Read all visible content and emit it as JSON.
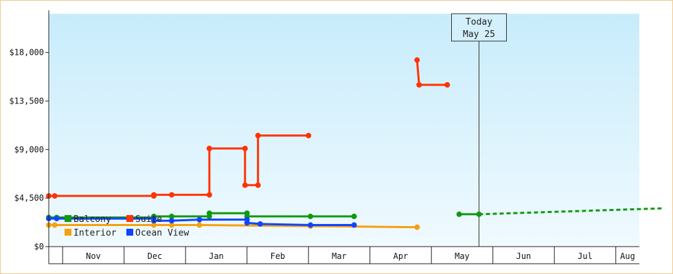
{
  "chart_data": {
    "type": "line",
    "title": "",
    "xlabel": "",
    "ylabel": "",
    "x_axis": {
      "type": "date",
      "range": [
        "2013-10-25",
        "2014-08-25"
      ],
      "tick_labels": [
        "Nov",
        "Dec",
        "Jan",
        "Feb",
        "Mar",
        "Apr",
        "May",
        "Jun",
        "Jul",
        "Aug"
      ]
    },
    "y_axis": {
      "range": [
        0,
        21600
      ],
      "ticks": [
        0,
        4500,
        9000,
        13500,
        18000
      ],
      "tick_labels": [
        "$0",
        "$4,500",
        "$9,000",
        "$13,500",
        "$18,000"
      ]
    },
    "grid": false,
    "legend_placement": "bottom-left",
    "today_marker": {
      "date": "2014-05-25",
      "line1": "Today",
      "line2": "May 25"
    },
    "series": [
      {
        "name": "Balcony",
        "color": "#119911",
        "segments": [
          [
            [
              "2013-10-25",
              2700
            ],
            [
              "2013-10-29",
              2700
            ],
            [
              "2013-12-16",
              2700
            ],
            [
              "2013-12-16",
              2800
            ],
            [
              "2013-12-25",
              2800
            ],
            [
              "2014-01-13",
              2800
            ],
            [
              "2014-01-13",
              3100
            ],
            [
              "2014-02-01",
              3100
            ],
            [
              "2014-02-01",
              2800
            ],
            [
              "2014-03-02",
              2800
            ],
            [
              "2014-03-24",
              2800
            ]
          ],
          [
            [
              "2014-05-15",
              3000
            ],
            [
              "2014-05-25",
              3000
            ]
          ]
        ],
        "projection": [
          [
            "2014-05-25",
            3000
          ],
          [
            "2014-08-25",
            3550
          ]
        ]
      },
      {
        "name": "Suite",
        "color": "#ff3300",
        "segments": [
          [
            [
              "2013-10-25",
              4700
            ],
            [
              "2013-10-28",
              4700
            ],
            [
              "2013-12-16",
              4700
            ],
            [
              "2013-12-16",
              4800
            ],
            [
              "2013-12-25",
              4800
            ],
            [
              "2014-01-13",
              4800
            ],
            [
              "2014-01-13",
              9100
            ],
            [
              "2014-01-31",
              9100
            ],
            [
              "2014-01-31",
              5700
            ],
            [
              "2014-02-06",
              5700
            ],
            [
              "2014-02-06",
              10300
            ],
            [
              "2014-03-01",
              10300
            ]
          ],
          [
            [
              "2014-04-24",
              17300
            ],
            [
              "2014-04-24",
              17300
            ],
            [
              "2014-04-25",
              15000
            ],
            [
              "2014-05-09",
              15000
            ]
          ]
        ]
      },
      {
        "name": "Interior",
        "color": "#f5a010",
        "segments": [
          [
            [
              "2013-10-25",
              2000
            ],
            [
              "2013-10-28",
              2000
            ],
            [
              "2013-12-16",
              2000
            ],
            [
              "2013-12-25",
              2000
            ],
            [
              "2014-01-08",
              2000
            ],
            [
              "2014-03-02",
              1900
            ],
            [
              "2014-04-24",
              1800
            ]
          ]
        ]
      },
      {
        "name": "Ocean View",
        "color": "#1144ff",
        "segments": [
          [
            [
              "2013-10-25",
              2600
            ],
            [
              "2013-10-29",
              2600
            ],
            [
              "2013-12-16",
              2600
            ],
            [
              "2013-12-16",
              2400
            ],
            [
              "2013-12-25",
              2400
            ],
            [
              "2014-01-08",
              2500
            ],
            [
              "2014-02-01",
              2500
            ],
            [
              "2014-02-01",
              2200
            ],
            [
              "2014-02-07",
              2100
            ],
            [
              "2014-03-02",
              2000
            ],
            [
              "2014-03-24",
              2000
            ]
          ]
        ]
      }
    ]
  }
}
